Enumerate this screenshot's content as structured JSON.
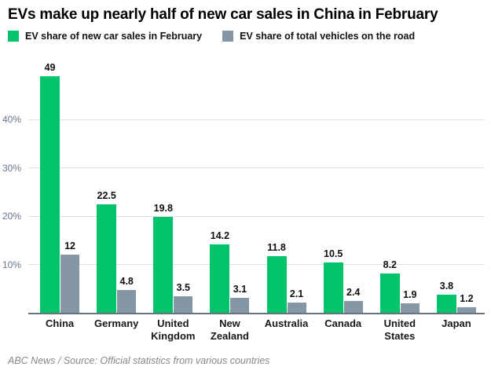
{
  "title": "EVs make up nearly half of new car sales in China in February",
  "source": "ABC News / Source: Official statistics from various countries",
  "colors": {
    "new_sales_green": "#00c36c",
    "on_road_gray": "#8597a4",
    "gridline": "#dbe1e8",
    "axis_line": "#68727f",
    "axis_label": "#66758a"
  },
  "chart_data": {
    "type": "bar",
    "title": "EVs make up nearly half of new car sales in China in February",
    "categories": [
      "China",
      "Germany",
      "United Kingdom",
      "New Zealand",
      "Australia",
      "Canada",
      "United States",
      "Japan"
    ],
    "series": [
      {
        "name": "EV share of new car sales in February",
        "color": "#00c36c",
        "values": [
          49,
          22.5,
          19.8,
          14.2,
          11.8,
          10.5,
          8.2,
          3.8
        ],
        "labels": [
          "49",
          "22.5",
          "19.8",
          "14.2",
          "11.8",
          "10.5",
          "8.2",
          "3.8"
        ]
      },
      {
        "name": "EV share of total vehicles on the road",
        "color": "#8597a4",
        "values": [
          12,
          4.8,
          3.5,
          3.1,
          2.1,
          2.4,
          1.9,
          1.2
        ],
        "labels": [
          "12",
          "4.8",
          "3.5",
          "3.1",
          "2.1",
          "2.4",
          "1.9",
          "1.2"
        ]
      }
    ],
    "xlabel": "",
    "ylabel": "",
    "y_ticks": [
      10,
      20,
      30,
      40
    ],
    "y_tick_labels": [
      "10%",
      "20%",
      "30%",
      "40%"
    ],
    "ylim": [
      0,
      50.2
    ],
    "grid": true,
    "legend_position": "top-left",
    "value_labels_shown": true
  }
}
